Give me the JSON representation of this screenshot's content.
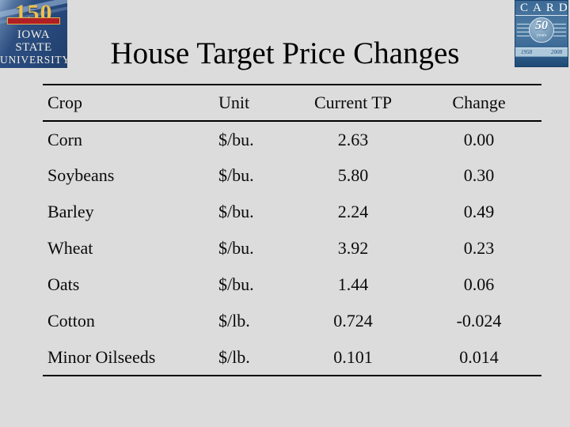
{
  "slide": {
    "title": "House Target Price Changes"
  },
  "logos": {
    "isu": {
      "anniversary": "150",
      "line1": "IOWA STATE",
      "line2": "UNIVERSITY"
    },
    "card": {
      "letters": "CARD",
      "anniversary": "50",
      "years_word": "years",
      "year_start": "1958",
      "year_end": "2008"
    }
  },
  "table": {
    "headers": [
      "Crop",
      "Unit",
      "Current TP",
      "Change"
    ],
    "rows": [
      [
        "Corn",
        "$/bu.",
        "2.63",
        "0.00"
      ],
      [
        "Soybeans",
        "$/bu.",
        "5.80",
        "0.30"
      ],
      [
        "Barley",
        "$/bu.",
        "2.24",
        "0.49"
      ],
      [
        "Wheat",
        "$/bu.",
        "3.92",
        "0.23"
      ],
      [
        "Oats",
        "$/bu.",
        "1.44",
        "0.06"
      ],
      [
        "Cotton",
        "$/lb.",
        "0.724",
        "-0.024"
      ],
      [
        "Minor Oilseeds",
        "$/lb.",
        "0.101",
        "0.014"
      ]
    ]
  },
  "colors": {
    "background": "#dcdcdc",
    "rule": "#000000",
    "isu_navy": "#27497c",
    "isu_gold": "#edc14f",
    "isu_red": "#b01f24",
    "card_blue": "#3c6a96",
    "card_dark": "#1d4a75",
    "card_band": "#aec9dc",
    "card_globe": "#7ba3c2"
  }
}
